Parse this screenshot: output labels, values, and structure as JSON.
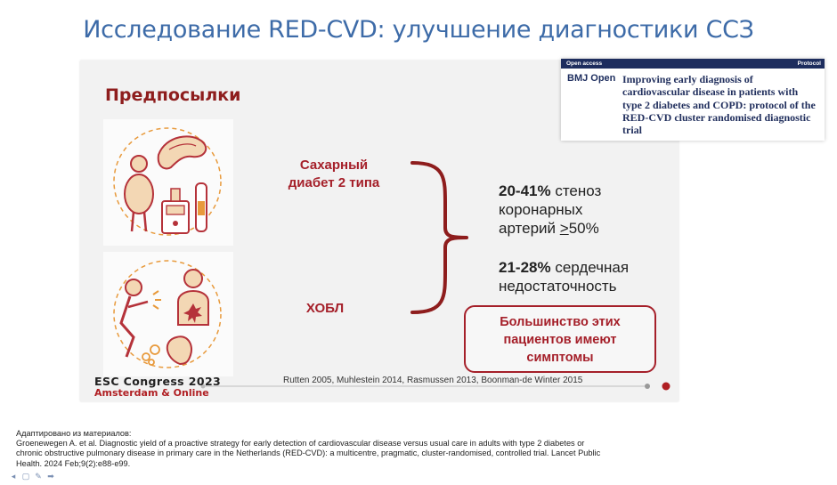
{
  "title": "Исследование RED-CVD: улучшение диагностики ССЗ",
  "section_title": "Предпосылки",
  "conditions": [
    {
      "lines": [
        "Сахарный",
        "диабет 2 типа"
      ]
    },
    {
      "lines": [
        "ХОБЛ"
      ]
    }
  ],
  "stats": [
    {
      "bold": "20-41%",
      "text_1": " стеноз",
      "text_2": "коронарных",
      "text_3_prefix": "артерий ",
      "text_3_underlined": ">",
      "text_3_suffix": "50%"
    },
    {
      "bold": "21-28%",
      "text_1": " сердечная",
      "text_2": "недостаточность"
    }
  ],
  "callout": {
    "lines": [
      "Большинство этих",
      "пациентов имеют",
      "симптомы"
    ]
  },
  "references": "Rutten 2005, Muhlestein 2014, Rasmussen 2013, Boonman-de Winter 2015",
  "esc_logo": {
    "line1": "ESC Congress 2023",
    "line2": "Amsterdam & Online"
  },
  "journal": {
    "bar_left": "Open access",
    "bar_right": "Protocol",
    "name": "BMJ Open",
    "article_title": "Improving early diagnosis of cardiovascular disease in patients with type 2 diabetes and COPD: protocol of the RED-CVD cluster randomised diagnostic trial"
  },
  "footer": {
    "line1": "Адаптировано из материалов:",
    "line2": "Groenewegen A. et al. Diagnostic yield of a proactive strategy for early detection of cardiovascular disease versus usual care in adults with type 2 diabetes or",
    "line3": "chronic obstructive pulmonary disease in primary care in the Netherlands (RED-CVD): a multicentre, pragmatic, cluster-randomised, controlled trial. Lancet Public",
    "line4": "Health. 2024 Feb;9(2):e88-e99."
  },
  "colors": {
    "title": "#3d6ba8",
    "accent_red": "#a5202a",
    "illustration_orange": "#e89a3c",
    "illustration_red": "#b5323a"
  },
  "icons": [
    "diabetes-illustration",
    "copd-illustration",
    "curly-brace",
    "timeline-track"
  ]
}
